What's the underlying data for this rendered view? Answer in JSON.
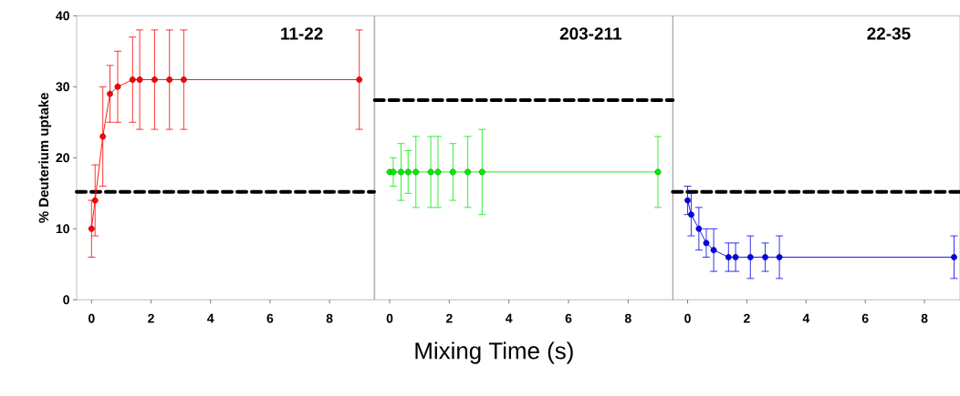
{
  "chart_data": [
    {
      "type": "line",
      "title": "11-22",
      "ylabel": "% Deuterium uptake",
      "xlim": [
        -0.5,
        9.5
      ],
      "ylim": [
        0,
        40
      ],
      "xticks": [
        0,
        2,
        4,
        6,
        8
      ],
      "yticks": [
        0,
        10,
        20,
        30,
        40
      ],
      "marker": "circle",
      "line_style": "solid",
      "ref_lines": [
        {
          "axis": "y",
          "value": 15.2,
          "color": "#000000",
          "line_style": "dashed"
        }
      ],
      "series": [
        {
          "color": "#ff0000",
          "x": [
            0,
            0.12,
            0.38,
            0.62,
            0.88,
            1.38,
            1.62,
            2.12,
            2.62,
            3.1,
            9
          ],
          "values": [
            10,
            14,
            23,
            29,
            30,
            31,
            31,
            31,
            31,
            31,
            31
          ],
          "errors": [
            4,
            5,
            7,
            4,
            5,
            6,
            7,
            7,
            7,
            7,
            7
          ]
        }
      ]
    },
    {
      "type": "line",
      "title": "203-211",
      "xlabel": "Mixing Time (s)",
      "xlim": [
        -0.5,
        9.5
      ],
      "ylim": [
        0,
        40
      ],
      "xticks": [
        0,
        2,
        4,
        6,
        8
      ],
      "yticks": [
        0,
        10,
        20,
        30,
        40
      ],
      "tick_labels": "x",
      "marker": "circle",
      "line_style": "solid",
      "ref_lines": [
        {
          "axis": "y",
          "value": 28.1,
          "color": "#000000",
          "line_style": "dashed"
        }
      ],
      "series": [
        {
          "color": "#00ee00",
          "x": [
            0,
            0.12,
            0.38,
            0.62,
            0.88,
            1.38,
            1.62,
            2.12,
            2.62,
            3.1,
            9
          ],
          "values": [
            18,
            18,
            18,
            18,
            18,
            18,
            18,
            18,
            18,
            18,
            18
          ],
          "errors": [
            null,
            2,
            4,
            3,
            5,
            5,
            5,
            4,
            5,
            6,
            5
          ]
        }
      ]
    },
    {
      "type": "line",
      "title": "22-35",
      "xlim": [
        -0.5,
        9.2
      ],
      "ylim": [
        0,
        40
      ],
      "xticks": [
        0,
        2,
        4,
        6,
        8
      ],
      "yticks": [
        0,
        10,
        20,
        30,
        40
      ],
      "tick_labels": "x",
      "marker": "circle",
      "line_style": "solid",
      "ref_lines": [
        {
          "axis": "y",
          "value": 15.2,
          "color": "#000000",
          "line_style": "dashed"
        }
      ],
      "series": [
        {
          "color": "#0000ee",
          "x": [
            0,
            0.12,
            0.38,
            0.63,
            0.88,
            1.38,
            1.62,
            2.12,
            2.62,
            3.1,
            9
          ],
          "values": [
            14,
            12,
            10,
            8,
            7,
            6,
            6,
            6,
            6,
            6,
            6
          ],
          "errors": [
            2,
            3,
            3,
            2,
            3,
            2,
            2,
            3,
            2,
            3,
            3
          ]
        }
      ]
    }
  ]
}
